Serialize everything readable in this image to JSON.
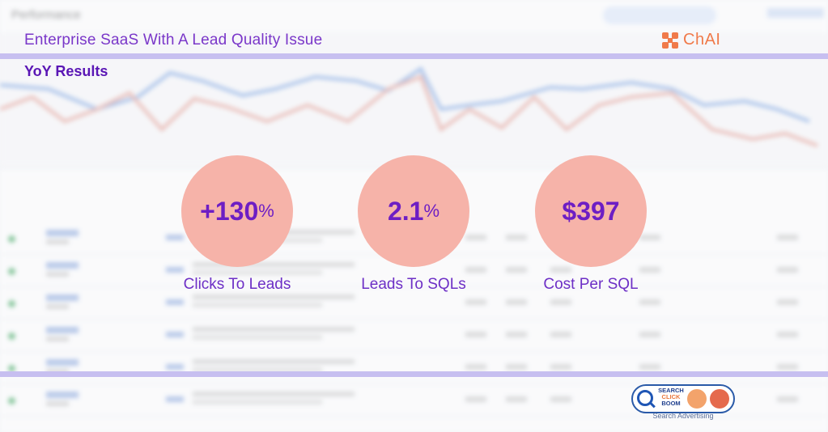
{
  "header": {
    "headline": "Enterprise SaaS With A Lead Quality Issue",
    "subhead": "YoY Results",
    "chai_logo": "ChAI"
  },
  "metrics": [
    {
      "value": "+130",
      "unit": "%",
      "caption": "Clicks To Leads"
    },
    {
      "value": "2.1",
      "unit": "%",
      "caption": "Leads To SQLs"
    },
    {
      "value": "$397",
      "unit": "",
      "caption": "Cost Per SQL"
    }
  ],
  "footer_logo": {
    "line1": "SEARCH",
    "line2": "CLICK",
    "line3": "BOOM",
    "tagline": "Search Advertising"
  },
  "colors": {
    "band": "#c7bff0",
    "circle": "#f6b3a9",
    "metric_text": "#6d1ec4",
    "headline": "#7a37c9"
  },
  "background": {
    "page_title": "Performance"
  }
}
